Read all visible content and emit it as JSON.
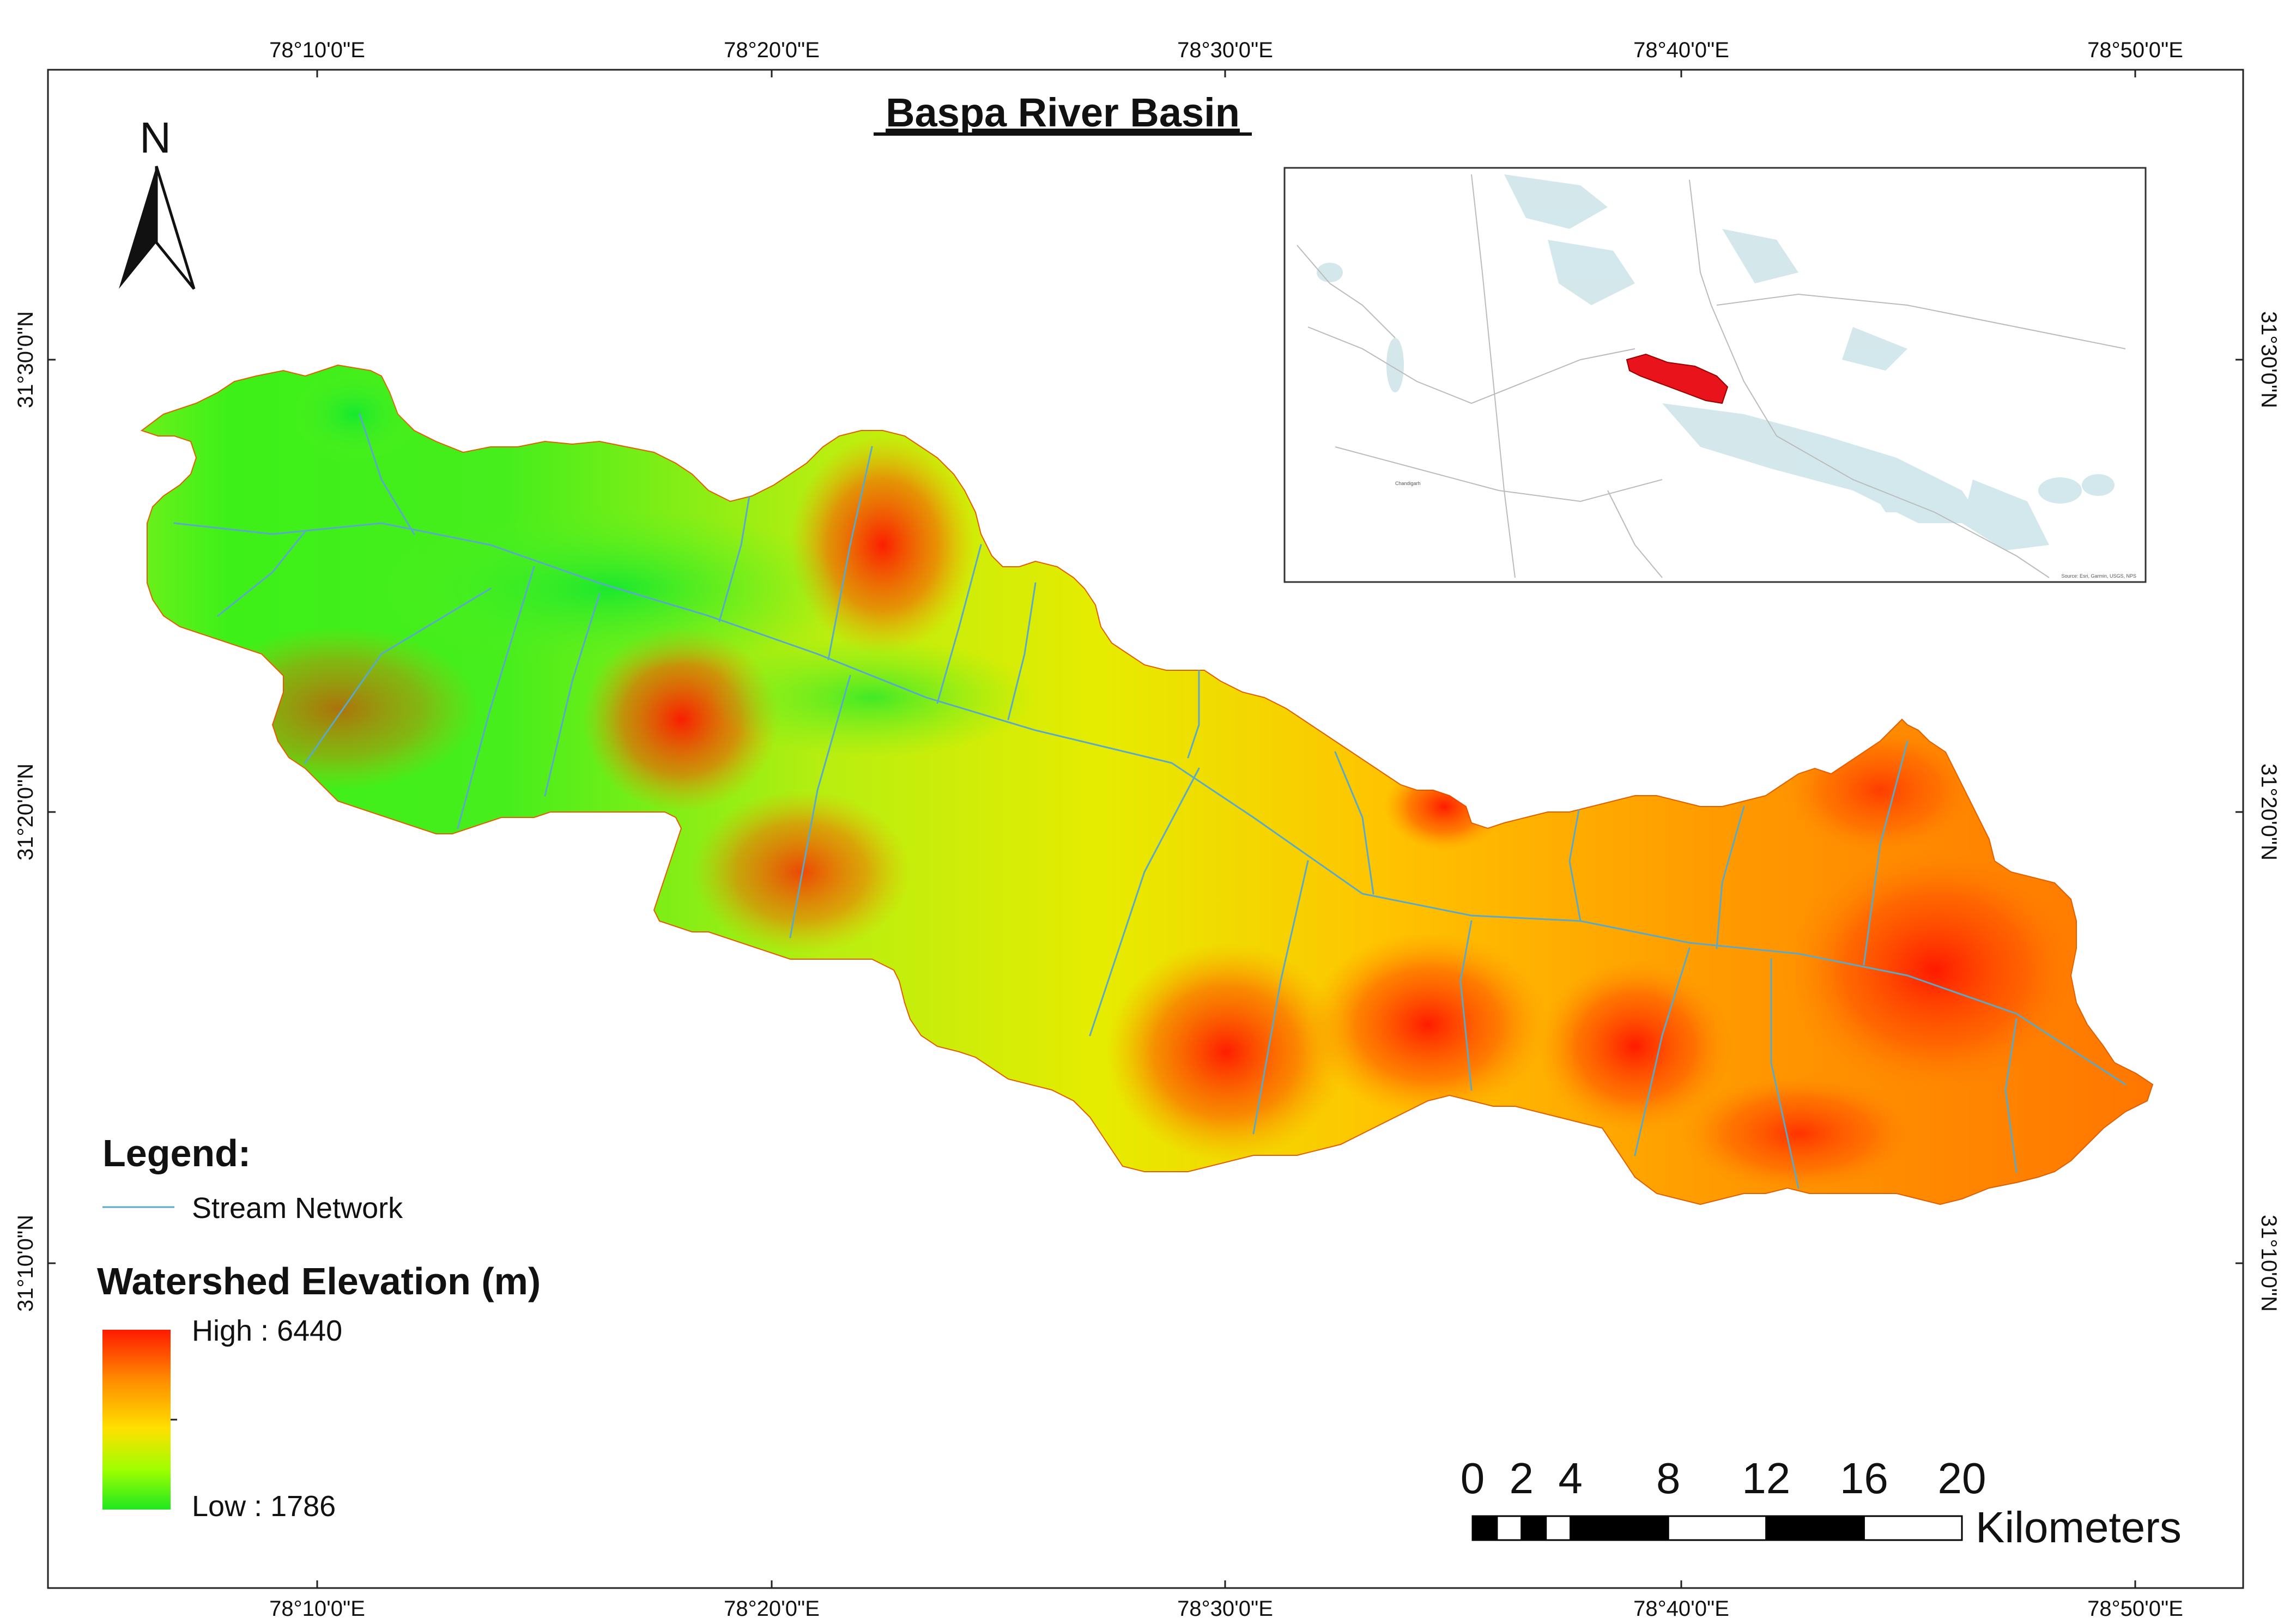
{
  "map": {
    "title": "Baspa River Basin",
    "graticule": {
      "longitude_labels": [
        "78°10'0\"E",
        "78°20'0\"E",
        "78°30'0\"E",
        "78°40'0\"E",
        "78°50'0\"E"
      ],
      "latitude_labels": [
        "31°30'0\"N",
        "31°20'0\"N",
        "31°10'0\"N"
      ]
    },
    "north_arrow": {
      "label": "N"
    },
    "legend": {
      "heading": "Legend:",
      "stream_label": "Stream Network",
      "stream_color": "#5aa9c9",
      "elevation_heading": "Watershed Elevation (m)",
      "high_label": "High : 6440",
      "low_label": "Low : 1786",
      "ramp_colors": [
        "#ff1a00",
        "#ff8c00",
        "#ffe000",
        "#9eff00",
        "#1fe81f"
      ]
    },
    "scale_bar": {
      "ticks": [
        "0",
        "2",
        "4",
        "8",
        "12",
        "16",
        "20"
      ],
      "unit": "Kilometers"
    },
    "inset": {
      "place_labels": [
        "Chandigarh"
      ],
      "attribution": "Source: Esri, Garmin, USGS, NPS",
      "basin_color": "#e8131b"
    }
  }
}
